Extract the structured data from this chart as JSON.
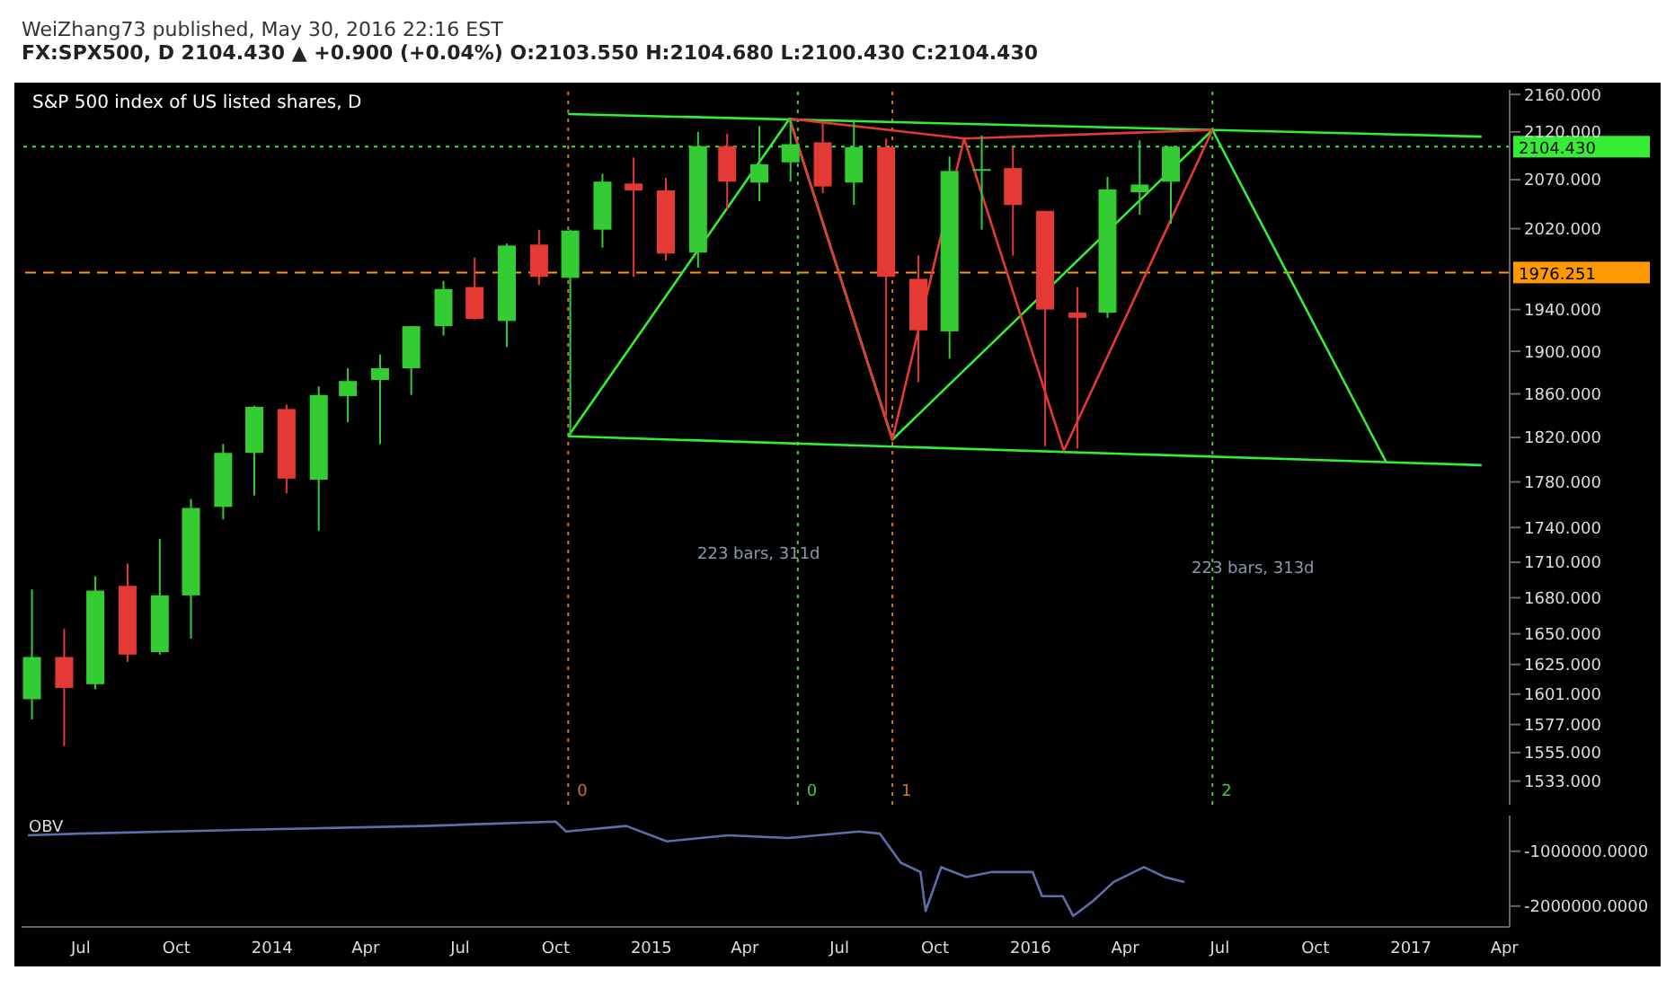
{
  "chart_data": [
    {
      "type": "candlestick",
      "title": "S&P 500 index of US listed shares, D",
      "subtitle": "FX:SPX500, D 2104.430 ▲ +0.900 (+0.04%) O:2103.550 H:2104.680 L:2100.430 C:2104.430",
      "annotations": [
        "WeiZhang73 published, May 30, 2016 22:16 EST",
        "223 bars, 311d",
        "223 bars, 313d"
      ],
      "x": [
        "2013-05-15",
        "2013-06-15",
        "2013-07-15",
        "2013-08-15",
        "2013-09-15",
        "2013-10-15",
        "2013-11-15",
        "2013-12-15",
        "2014-01-15",
        "2014-02-15",
        "2014-03-15",
        "2014-04-15",
        "2014-05-15",
        "2014-06-15",
        "2014-07-15",
        "2014-08-15",
        "2014-09-15",
        "2014-10-15",
        "2014-11-15",
        "2014-12-15",
        "2015-01-15",
        "2015-02-15",
        "2015-03-15",
        "2015-04-15",
        "2015-05-15",
        "2015-06-15",
        "2015-07-15",
        "2015-08-15",
        "2015-09-15",
        "2015-10-15",
        "2015-11-15",
        "2015-12-15",
        "2016-01-15",
        "2016-02-15",
        "2016-03-15",
        "2016-04-15",
        "2016-05-15"
      ],
      "ohlc": [
        [
          1597,
          1687,
          1581,
          1631
        ],
        [
          1631,
          1654,
          1560,
          1606
        ],
        [
          1609,
          1698,
          1605,
          1686
        ],
        [
          1690,
          1709,
          1627,
          1633
        ],
        [
          1635,
          1730,
          1633,
          1682
        ],
        [
          1682,
          1765,
          1646,
          1757
        ],
        [
          1758,
          1814,
          1747,
          1806
        ],
        [
          1806,
          1849,
          1768,
          1848
        ],
        [
          1846,
          1850,
          1770,
          1783
        ],
        [
          1782,
          1867,
          1737,
          1859
        ],
        [
          1858,
          1884,
          1834,
          1872
        ],
        [
          1873,
          1897,
          1814,
          1884
        ],
        [
          1884,
          1924,
          1859,
          1924
        ],
        [
          1924,
          1968,
          1915,
          1960
        ],
        [
          1962,
          1991,
          1930,
          1931
        ],
        [
          1929,
          2005,
          1904,
          2003
        ],
        [
          2004,
          2019,
          1964,
          1972
        ],
        [
          1971,
          2019,
          1821,
          2018
        ],
        [
          2019,
          2076,
          2001,
          2068
        ],
        [
          2066,
          2093,
          1972,
          2059
        ],
        [
          2059,
          2072,
          1988,
          1995
        ],
        [
          1996,
          2120,
          1981,
          2105
        ],
        [
          2105,
          2118,
          2040,
          2068
        ],
        [
          2067,
          2126,
          2048,
          2086
        ],
        [
          2088,
          2135,
          2068,
          2107
        ],
        [
          2109,
          2130,
          2056,
          2063
        ],
        [
          2067,
          2133,
          2044,
          2104
        ],
        [
          2104,
          2113,
          1840,
          1972
        ],
        [
          1970,
          1993,
          1871,
          1920
        ],
        [
          1919,
          2094,
          1893,
          2079
        ],
        [
          2080,
          2116,
          2019,
          2081
        ],
        [
          2082,
          2104,
          1993,
          2044
        ],
        [
          2038,
          2038,
          1812,
          1940
        ],
        [
          1937,
          1962,
          1810,
          1932
        ],
        [
          1937,
          2073,
          1932,
          2060
        ],
        [
          2057,
          2111,
          2034,
          2065
        ],
        [
          2068,
          2105,
          2025,
          2104.43
        ]
      ],
      "colors": [
        "#33cc33",
        "#e53935",
        "#33cc33",
        "#e53935",
        "#33cc33",
        "#33cc33",
        "#33cc33",
        "#33cc33",
        "#e53935",
        "#33cc33",
        "#33cc33",
        "#33cc33",
        "#33cc33",
        "#33cc33",
        "#e53935",
        "#33cc33",
        "#e53935",
        "#33cc33",
        "#33cc33",
        "#e53935",
        "#e53935",
        "#33cc33",
        "#e53935",
        "#33cc33",
        "#33cc33",
        "#e53935",
        "#33cc33",
        "#e53935",
        "#e53935",
        "#33cc33",
        "#33cc33",
        "#e53935",
        "#e53935",
        "#e53935",
        "#33cc33",
        "#33cc33",
        "#33cc33"
      ],
      "series": [
        {
          "type": "line",
          "color": "#33ee33",
          "x": [
            "2014-10-13",
            "2017-03-10"
          ],
          "values": [
            2139,
            2115
          ]
        },
        {
          "type": "line",
          "color": "#33ee33",
          "x": [
            "2014-10-13",
            "2017-03-10"
          ],
          "values": [
            1821,
            1795
          ]
        },
        {
          "type": "line",
          "color": "#33ee33",
          "x": [
            "2014-10-13",
            "2015-05-14",
            "2015-08-21",
            "2016-06-24",
            "2016-12-08"
          ],
          "values": [
            1821,
            2134,
            1818,
            2122,
            1798
          ]
        },
        {
          "type": "line",
          "color": "#e53935",
          "x": [
            "2015-05-14",
            "2015-08-21",
            "2015-10-29",
            "2016-02-02",
            "2016-06-24"
          ],
          "values": [
            2134,
            1818,
            2113,
            1808,
            2122
          ]
        },
        {
          "type": "line",
          "color": "#e53935",
          "x": [
            "2015-05-14",
            "2015-10-29",
            "2016-06-24"
          ],
          "values": [
            2134,
            2113,
            2122
          ]
        }
      ],
      "ref_lines": [
        {
          "axis": "y",
          "value": 2104.43,
          "label": "2104.430",
          "color": "#33ee33",
          "line_style": "dotted"
        },
        {
          "axis": "y",
          "value": 1976.251,
          "label": "1976.251",
          "color": "#ff9900",
          "line_style": "dashed"
        },
        {
          "axis": "x",
          "value": "2014-10-13",
          "label": "0",
          "color": "#cc7722",
          "line_style": "dotted"
        },
        {
          "axis": "x",
          "value": "2015-05-22",
          "label": "0",
          "color": "#44cc44",
          "line_style": "dotted"
        },
        {
          "axis": "x",
          "value": "2015-08-21",
          "label": "1",
          "color": "#cc7722",
          "line_style": "dotted"
        },
        {
          "axis": "x",
          "value": "2016-06-24",
          "label": "2",
          "color": "#44cc44",
          "line_style": "dotted"
        }
      ],
      "log": "y",
      "xlim": [
        "2013-05-05",
        "2017-04-06"
      ],
      "ylim": [
        1515,
        2165
      ],
      "yticks": [
        {
          "value": 2160,
          "label": "2160.000"
        },
        {
          "value": 2120,
          "label": "2120.000"
        },
        {
          "value": 2070,
          "label": "2070.000"
        },
        {
          "value": 2020,
          "label": "2020.000"
        },
        {
          "value": 1940,
          "label": "1940.000"
        },
        {
          "value": 1900,
          "label": "1900.000"
        },
        {
          "value": 1860,
          "label": "1860.000"
        },
        {
          "value": 1820,
          "label": "1820.000"
        },
        {
          "value": 1780,
          "label": "1780.000"
        },
        {
          "value": 1740,
          "label": "1740.000"
        },
        {
          "value": 1710,
          "label": "1710.000"
        },
        {
          "value": 1680,
          "label": "1680.000"
        },
        {
          "value": 1650,
          "label": "1650.000"
        },
        {
          "value": 1625,
          "label": "1625.000"
        },
        {
          "value": 1601,
          "label": "1601.000"
        },
        {
          "value": 1577,
          "label": "1577.000"
        },
        {
          "value": 1555,
          "label": "1555.000"
        },
        {
          "value": 1533,
          "label": "1533.000"
        }
      ],
      "tick_labels": "y"
    },
    {
      "type": "line",
      "series": [
        {
          "name": "OBV",
          "color": "#5b6fa8",
          "x": [
            "2013-05-11",
            "2013-06-29",
            "2013-11-12",
            "2014-05-27",
            "2014-10-01",
            "2014-10-11",
            "2014-12-08",
            "2015-01-16",
            "2015-03-16",
            "2015-05-13",
            "2015-07-20",
            "2015-08-09",
            "2015-08-29",
            "2015-09-17",
            "2015-09-22",
            "2015-10-07",
            "2015-10-31",
            "2015-11-24",
            "2016-01-03",
            "2016-01-12",
            "2016-02-01",
            "2016-02-11",
            "2016-03-01",
            "2016-03-21",
            "2016-04-19",
            "2016-05-09",
            "2016-05-28"
          ],
          "values": [
            -710000,
            -680000,
            -620000,
            -540000,
            -460000,
            -640000,
            -540000,
            -820000,
            -710000,
            -760000,
            -640000,
            -680000,
            -1210000,
            -1380000,
            -2090000,
            -1290000,
            -1470000,
            -1380000,
            -1380000,
            -1820000,
            -1820000,
            -2180000,
            -1910000,
            -1560000,
            -1290000,
            -1470000,
            -1560000
          ]
        }
      ],
      "xlim": [
        "2013-05-05",
        "2017-04-06"
      ],
      "ylim": [
        -2380000,
        -350000
      ],
      "yticks": [
        {
          "value": -1000000,
          "label": "-1000000.0000"
        },
        {
          "value": -2000000,
          "label": "-2000000.0000"
        }
      ],
      "xticks": [
        {
          "value": "2013-07-01",
          "label": "Jul"
        },
        {
          "value": "2013-10-01",
          "label": "Oct"
        },
        {
          "value": "2014-01-01",
          "label": "2014"
        },
        {
          "value": "2014-04-01",
          "label": "Apr"
        },
        {
          "value": "2014-07-01",
          "label": "Jul"
        },
        {
          "value": "2014-10-01",
          "label": "Oct"
        },
        {
          "value": "2015-01-01",
          "label": "2015"
        },
        {
          "value": "2015-04-01",
          "label": "Apr"
        },
        {
          "value": "2015-07-01",
          "label": "Jul"
        },
        {
          "value": "2015-10-01",
          "label": "Oct"
        },
        {
          "value": "2016-01-01",
          "label": "2016"
        },
        {
          "value": "2016-04-01",
          "label": "Apr"
        },
        {
          "value": "2016-07-01",
          "label": "Jul"
        },
        {
          "value": "2016-10-01",
          "label": "Oct"
        },
        {
          "value": "2017-01-01",
          "label": "2017"
        },
        {
          "value": "2017-04-01",
          "label": "Apr"
        }
      ]
    }
  ]
}
